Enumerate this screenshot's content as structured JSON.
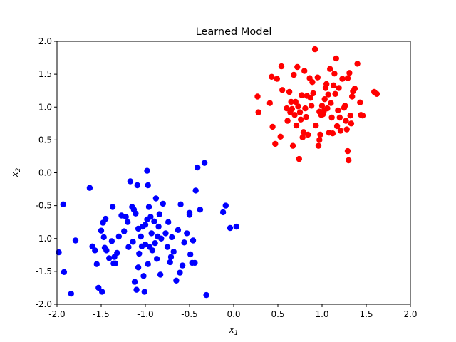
{
  "chart_data": {
    "type": "scatter",
    "title": "Learned Model",
    "xlabel": "x",
    "xlabel_sub": "1",
    "ylabel": "x",
    "ylabel_sub": "2",
    "xlim": [
      -2.0,
      2.0
    ],
    "ylim": [
      -2.0,
      2.0
    ],
    "xticks": [
      "-2.0",
      "-1.5",
      "-1.0",
      "-0.5",
      "0.0",
      "0.5",
      "1.0",
      "1.5",
      "2.0"
    ],
    "yticks": [
      "-2.0",
      "-1.5",
      "-1.0",
      "-0.5",
      "0.0",
      "0.5",
      "1.0",
      "1.5",
      "2.0"
    ],
    "grid": false,
    "series": [
      {
        "color": "#0000ff",
        "points": [
          [
            -1.98,
            -1.21
          ],
          [
            -1.93,
            -0.48
          ],
          [
            -1.92,
            -1.51
          ],
          [
            -1.84,
            -1.84
          ],
          [
            -1.79,
            -1.03
          ],
          [
            -1.63,
            -0.23
          ],
          [
            -1.6,
            -1.12
          ],
          [
            -1.57,
            -1.18
          ],
          [
            -1.55,
            -1.39
          ],
          [
            -1.53,
            -1.75
          ],
          [
            -1.5,
            -0.88
          ],
          [
            -1.49,
            -1.81
          ],
          [
            -1.48,
            -0.76
          ],
          [
            -1.47,
            -0.98
          ],
          [
            -1.46,
            -1.14
          ],
          [
            -1.45,
            -0.7
          ],
          [
            -1.44,
            -1.18
          ],
          [
            -1.41,
            -1.3
          ],
          [
            -1.38,
            -1.04
          ],
          [
            -1.37,
            -0.52
          ],
          [
            -1.36,
            -1.38
          ],
          [
            -1.35,
            -1.28
          ],
          [
            -1.34,
            -1.38
          ],
          [
            -1.32,
            -1.22
          ],
          [
            -1.3,
            -0.97
          ],
          [
            -1.27,
            -0.65
          ],
          [
            -1.24,
            -0.89
          ],
          [
            -1.22,
            -0.67
          ],
          [
            -1.2,
            -0.75
          ],
          [
            -1.19,
            -1.13
          ],
          [
            -1.17,
            -0.13
          ],
          [
            -1.15,
            -0.52
          ],
          [
            -1.14,
            -1.05
          ],
          [
            -1.13,
            -0.56
          ],
          [
            -1.12,
            -1.66
          ],
          [
            -1.11,
            -0.62
          ],
          [
            -1.1,
            -1.78
          ],
          [
            -1.09,
            -0.19
          ],
          [
            -1.08,
            -0.85
          ],
          [
            -1.08,
            -1.44
          ],
          [
            -1.07,
            -1.23
          ],
          [
            -1.05,
            -0.97
          ],
          [
            -1.04,
            -1.12
          ],
          [
            -1.03,
            -0.82
          ],
          [
            -1.02,
            -1.57
          ],
          [
            -1.01,
            -1.81
          ],
          [
            -1.0,
            -0.79
          ],
          [
            -1.0,
            -1.09
          ],
          [
            -0.98,
            0.03
          ],
          [
            -0.98,
            -0.71
          ],
          [
            -0.97,
            -1.39
          ],
          [
            -0.97,
            -0.19
          ],
          [
            -0.96,
            -0.52
          ],
          [
            -0.95,
            -1.13
          ],
          [
            -0.94,
            -0.67
          ],
          [
            -0.93,
            -0.92
          ],
          [
            -0.92,
            -1.18
          ],
          [
            -0.9,
            -0.74
          ],
          [
            -0.89,
            -1.07
          ],
          [
            -0.88,
            -0.39
          ],
          [
            -0.87,
            -1.31
          ],
          [
            -0.86,
            -0.97
          ],
          [
            -0.85,
            -0.82
          ],
          [
            -0.84,
            -0.63
          ],
          [
            -0.83,
            -1.55
          ],
          [
            -0.82,
            -1.0
          ],
          [
            -0.8,
            -0.47
          ],
          [
            -0.77,
            -0.92
          ],
          [
            -0.75,
            -1.13
          ],
          [
            -0.74,
            -0.75
          ],
          [
            -0.72,
            -1.36
          ],
          [
            -0.71,
            -1.28
          ],
          [
            -0.7,
            -0.98
          ],
          [
            -0.68,
            -1.2
          ],
          [
            -0.65,
            -1.64
          ],
          [
            -0.63,
            -0.87
          ],
          [
            -0.61,
            -1.52
          ],
          [
            -0.6,
            -0.48
          ],
          [
            -0.58,
            -1.41
          ],
          [
            -0.56,
            -1.06
          ],
          [
            -0.53,
            -0.92
          ],
          [
            -0.5,
            -0.61
          ],
          [
            -0.5,
            -0.64
          ],
          [
            -0.49,
            -1.24
          ],
          [
            -0.47,
            -1.37
          ],
          [
            -0.46,
            -1.03
          ],
          [
            -0.44,
            -1.37
          ],
          [
            -0.43,
            -0.27
          ],
          [
            -0.41,
            0.08
          ],
          [
            -0.38,
            -0.56
          ],
          [
            -0.33,
            0.15
          ],
          [
            -0.31,
            -1.86
          ],
          [
            -0.12,
            -0.6
          ],
          [
            -0.09,
            -0.5
          ],
          [
            -0.04,
            -0.84
          ],
          [
            0.03,
            -0.82
          ]
        ]
      },
      {
        "color": "#ff0000",
        "points": [
          [
            0.27,
            1.16
          ],
          [
            0.28,
            0.92
          ],
          [
            0.41,
            1.06
          ],
          [
            0.43,
            1.46
          ],
          [
            0.44,
            0.7
          ],
          [
            0.47,
            0.44
          ],
          [
            0.49,
            1.43
          ],
          [
            0.53,
            0.55
          ],
          [
            0.54,
            1.62
          ],
          [
            0.55,
            1.26
          ],
          [
            0.6,
            0.98
          ],
          [
            0.61,
            0.79
          ],
          [
            0.63,
            1.23
          ],
          [
            0.64,
            0.92
          ],
          [
            0.65,
            1.08
          ],
          [
            0.66,
            0.97
          ],
          [
            0.67,
            0.41
          ],
          [
            0.68,
            1.49
          ],
          [
            0.69,
            0.88
          ],
          [
            0.7,
            1.08
          ],
          [
            0.71,
            0.72
          ],
          [
            0.72,
            1.61
          ],
          [
            0.73,
            1.01
          ],
          [
            0.74,
            0.21
          ],
          [
            0.75,
            0.92
          ],
          [
            0.76,
            0.81
          ],
          [
            0.77,
            1.18
          ],
          [
            0.78,
            0.54
          ],
          [
            0.79,
            0.62
          ],
          [
            0.8,
            1.55
          ],
          [
            0.81,
            0.98
          ],
          [
            0.82,
            0.85
          ],
          [
            0.83,
            1.17
          ],
          [
            0.84,
            0.58
          ],
          [
            0.86,
            1.44
          ],
          [
            0.87,
            1.14
          ],
          [
            0.88,
            1.02
          ],
          [
            0.89,
            1.38
          ],
          [
            0.9,
            1.21
          ],
          [
            0.92,
            1.88
          ],
          [
            0.93,
            0.72
          ],
          [
            0.95,
            1.45
          ],
          [
            0.96,
            0.41
          ],
          [
            0.97,
            0.93
          ],
          [
            0.97,
            0.5
          ],
          [
            0.98,
            0.58
          ],
          [
            0.99,
            0.88
          ],
          [
            1.0,
            1.02
          ],
          [
            1.01,
            0.89
          ],
          [
            1.02,
            0.94
          ],
          [
            1.03,
            1.12
          ],
          [
            1.04,
            1.29
          ],
          [
            1.05,
            1.35
          ],
          [
            1.06,
            0.98
          ],
          [
            1.07,
            1.19
          ],
          [
            1.08,
            0.61
          ],
          [
            1.09,
            1.58
          ],
          [
            1.1,
            1.06
          ],
          [
            1.11,
            0.84
          ],
          [
            1.12,
            0.6
          ],
          [
            1.13,
            1.33
          ],
          [
            1.14,
            1.51
          ],
          [
            1.15,
            1.2
          ],
          [
            1.16,
            1.74
          ],
          [
            1.17,
            0.71
          ],
          [
            1.18,
            0.95
          ],
          [
            1.19,
            1.29
          ],
          [
            1.2,
            0.84
          ],
          [
            1.21,
            0.64
          ],
          [
            1.23,
            1.43
          ],
          [
            1.25,
            0.99
          ],
          [
            1.26,
            1.02
          ],
          [
            1.27,
            0.79
          ],
          [
            1.28,
            0.66
          ],
          [
            1.29,
            1.44
          ],
          [
            1.29,
            0.33
          ],
          [
            1.3,
            0.19
          ],
          [
            1.31,
            1.52
          ],
          [
            1.32,
            0.87
          ],
          [
            1.33,
            0.75
          ],
          [
            1.34,
            1.16
          ],
          [
            1.35,
            1.24
          ],
          [
            1.37,
            1.28
          ],
          [
            1.4,
            1.66
          ],
          [
            1.43,
            1.07
          ],
          [
            1.44,
            0.88
          ],
          [
            1.46,
            0.87
          ],
          [
            1.59,
            1.23
          ],
          [
            1.62,
            1.2
          ]
        ]
      }
    ]
  }
}
